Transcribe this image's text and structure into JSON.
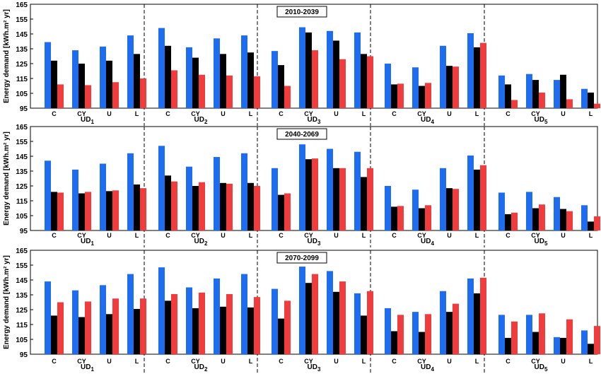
{
  "chart_data": [
    {
      "type": "bar",
      "title": "2010-2039",
      "ylabel": "Energy demand [kWh.m² yr]",
      "ylim": [
        95,
        165
      ],
      "yticks": [
        95,
        105,
        115,
        125,
        135,
        145,
        155,
        165
      ],
      "groups": [
        {
          "label": "UD",
          "sub": "1"
        },
        {
          "label": "UD",
          "sub": "2"
        },
        {
          "label": "UD",
          "sub": "3"
        },
        {
          "label": "UD",
          "sub": "4"
        },
        {
          "label": "UD",
          "sub": "5"
        }
      ],
      "categories": [
        "C",
        "CY",
        "U",
        "L"
      ],
      "series_colors": [
        "#1e6cf0",
        "#000000",
        "#f03c3c"
      ],
      "values": [
        [
          [
            139.5,
            127,
            111
          ],
          [
            134,
            125,
            110.5
          ],
          [
            136.5,
            127,
            112.5
          ],
          [
            144,
            131.5,
            115
          ]
        ],
        [
          [
            149,
            137,
            120.5
          ],
          [
            136,
            129,
            117.5
          ],
          [
            142,
            131.5,
            117
          ],
          [
            144,
            132.5,
            116.5
          ]
        ],
        [
          [
            133.5,
            124,
            110
          ],
          [
            149.5,
            146,
            134
          ],
          [
            147,
            140.5,
            128
          ],
          [
            146,
            131.5,
            130
          ]
        ],
        [
          [
            125,
            111,
            111.5
          ],
          [
            122.5,
            110,
            112
          ],
          [
            137,
            123.5,
            123
          ],
          [
            145.5,
            136,
            139
          ]
        ],
        [
          [
            117,
            111,
            100.5
          ],
          [
            118,
            114,
            105.5
          ],
          [
            114,
            117.5,
            101
          ],
          [
            108,
            105.5,
            98
          ]
        ]
      ]
    },
    {
      "type": "bar",
      "title": "2040-2069",
      "ylabel": "Energy demand [kWh.m² yr]",
      "ylim": [
        95,
        165
      ],
      "yticks": [
        95,
        105,
        115,
        125,
        135,
        145,
        155,
        165
      ],
      "groups": [
        {
          "label": "UD",
          "sub": "1"
        },
        {
          "label": "UD",
          "sub": "2"
        },
        {
          "label": "UD",
          "sub": "3"
        },
        {
          "label": "UD",
          "sub": "4"
        },
        {
          "label": "UD",
          "sub": "5"
        }
      ],
      "categories": [
        "C",
        "CY",
        "U",
        "L"
      ],
      "series_colors": [
        "#1e6cf0",
        "#000000",
        "#f03c3c"
      ],
      "values": [
        [
          [
            142,
            121,
            120.5
          ],
          [
            136,
            120,
            121
          ],
          [
            140,
            121.5,
            122
          ],
          [
            147,
            126,
            123.5
          ]
        ],
        [
          [
            152,
            132,
            128
          ],
          [
            138,
            125,
            127.5
          ],
          [
            144.5,
            127,
            126.5
          ],
          [
            147,
            127,
            125
          ]
        ],
        [
          [
            137,
            119,
            120
          ],
          [
            153,
            143,
            143.5
          ],
          [
            150,
            137,
            137
          ],
          [
            148,
            131,
            137
          ]
        ],
        [
          [
            125,
            111,
            111.5
          ],
          [
            122.5,
            110,
            112
          ],
          [
            137,
            123.5,
            123
          ],
          [
            145.5,
            136,
            139
          ]
        ],
        [
          [
            120.5,
            106,
            107
          ],
          [
            121,
            110,
            112.5
          ],
          [
            117.5,
            109.5,
            108
          ],
          [
            112,
            101,
            104.5
          ]
        ]
      ]
    },
    {
      "type": "bar",
      "title": "2070-2099",
      "ylabel": "Energy demand [kWh.m² yr]",
      "ylim": [
        95,
        165
      ],
      "yticks": [
        95,
        105,
        115,
        125,
        135,
        145,
        155,
        165
      ],
      "groups": [
        {
          "label": "UD",
          "sub": "1"
        },
        {
          "label": "UD",
          "sub": "2"
        },
        {
          "label": "UD",
          "sub": "3"
        },
        {
          "label": "UD",
          "sub": "4"
        },
        {
          "label": "UD",
          "sub": "5"
        }
      ],
      "categories": [
        "C",
        "CY",
        "U",
        "L"
      ],
      "series_colors": [
        "#1e6cf0",
        "#000000",
        "#f03c3c"
      ],
      "values": [
        [
          [
            144,
            121,
            130
          ],
          [
            138,
            120,
            130.5
          ],
          [
            141.5,
            122,
            132.5
          ],
          [
            149,
            125.5,
            132.5
          ]
        ],
        [
          [
            153.5,
            131,
            135.5
          ],
          [
            140,
            126,
            136.5
          ],
          [
            146,
            127,
            135.5
          ],
          [
            149,
            126.5,
            133.5
          ]
        ],
        [
          [
            139,
            119,
            131
          ],
          [
            154,
            143,
            149
          ],
          [
            151,
            137,
            144
          ],
          [
            136,
            121,
            137.5
          ]
        ],
        [
          [
            126,
            110.5,
            121.5
          ],
          [
            123.5,
            110,
            122
          ],
          [
            137.5,
            123.5,
            129
          ],
          [
            146,
            136,
            146.5
          ]
        ],
        [
          [
            121.5,
            106,
            117
          ],
          [
            121.5,
            110,
            122.5
          ],
          [
            106.5,
            106,
            118.5
          ],
          [
            111,
            102,
            114
          ]
        ]
      ]
    }
  ]
}
